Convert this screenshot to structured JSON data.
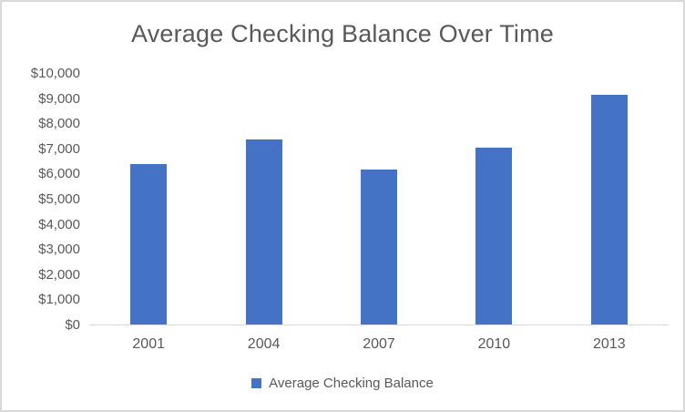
{
  "chart_data": {
    "type": "bar",
    "title": "Average Checking Balance Over Time",
    "categories": [
      "2001",
      "2004",
      "2007",
      "2010",
      "2013"
    ],
    "series": [
      {
        "name": "Average Checking Balance",
        "values": [
          6400,
          7400,
          6200,
          7050,
          9150
        ]
      }
    ],
    "xlabel": "",
    "ylabel": "",
    "ylim": [
      0,
      10000
    ],
    "y_ticks": {
      "values": [
        0,
        1000,
        2000,
        3000,
        4000,
        5000,
        6000,
        7000,
        8000,
        9000,
        10000
      ],
      "labels": [
        "$0",
        "$1,000",
        "$2,000",
        "$3,000",
        "$4,000",
        "$5,000",
        "$6,000",
        "$7,000",
        "$8,000",
        "$9,000",
        "$10,000"
      ]
    },
    "grid": false,
    "legend": {
      "position": "bottom",
      "entries": [
        "Average Checking Balance"
      ]
    },
    "colors": {
      "bar": "#4472C4",
      "text": "#595959",
      "axis_line": "#D9D9D9",
      "frame_border": "#D9D9D9"
    }
  }
}
